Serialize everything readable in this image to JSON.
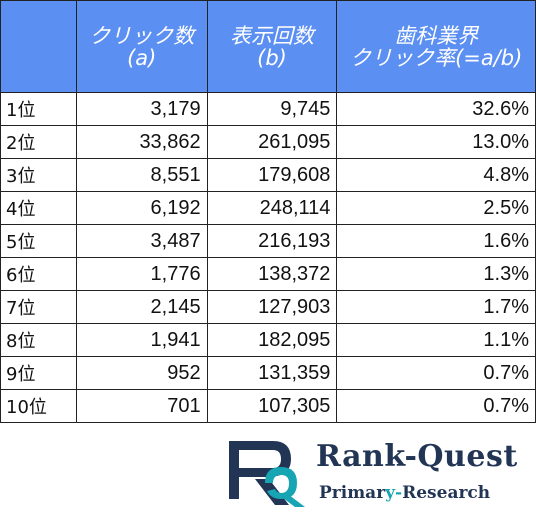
{
  "table": {
    "headers": [
      {
        "line1": "",
        "line2": ""
      },
      {
        "line1": "クリック数",
        "line2": "(a)"
      },
      {
        "line1": "表示回数",
        "line2": "(b)"
      },
      {
        "line1": "歯科業界",
        "line2": "クリック率(=a/b)"
      }
    ],
    "rows": [
      {
        "rank": "1位",
        "clicks": "3,179",
        "impressions": "9,745",
        "ctr": "32.6%"
      },
      {
        "rank": "2位",
        "clicks": "33,862",
        "impressions": "261,095",
        "ctr": "13.0%"
      },
      {
        "rank": "3位",
        "clicks": "8,551",
        "impressions": "179,608",
        "ctr": "4.8%"
      },
      {
        "rank": "4位",
        "clicks": "6,192",
        "impressions": "248,114",
        "ctr": "2.5%"
      },
      {
        "rank": "5位",
        "clicks": "3,487",
        "impressions": "216,193",
        "ctr": "1.6%"
      },
      {
        "rank": "6位",
        "clicks": "1,776",
        "impressions": "138,372",
        "ctr": "1.3%"
      },
      {
        "rank": "7位",
        "clicks": "2,145",
        "impressions": "127,903",
        "ctr": "1.7%"
      },
      {
        "rank": "8位",
        "clicks": "1,941",
        "impressions": "182,095",
        "ctr": "1.1%"
      },
      {
        "rank": "9位",
        "clicks": "952",
        "impressions": "131,359",
        "ctr": "0.7%"
      },
      {
        "rank": "10位",
        "clicks": "701",
        "impressions": "107,305",
        "ctr": "0.7%"
      }
    ]
  },
  "logo": {
    "name_part1": "Rank-",
    "name_part2": "Quest",
    "sub_part1": "Primar",
    "sub_part2": "y-",
    "sub_part3": "Research",
    "colors": {
      "navy": "#223555",
      "teal": "#17a5b3"
    }
  }
}
